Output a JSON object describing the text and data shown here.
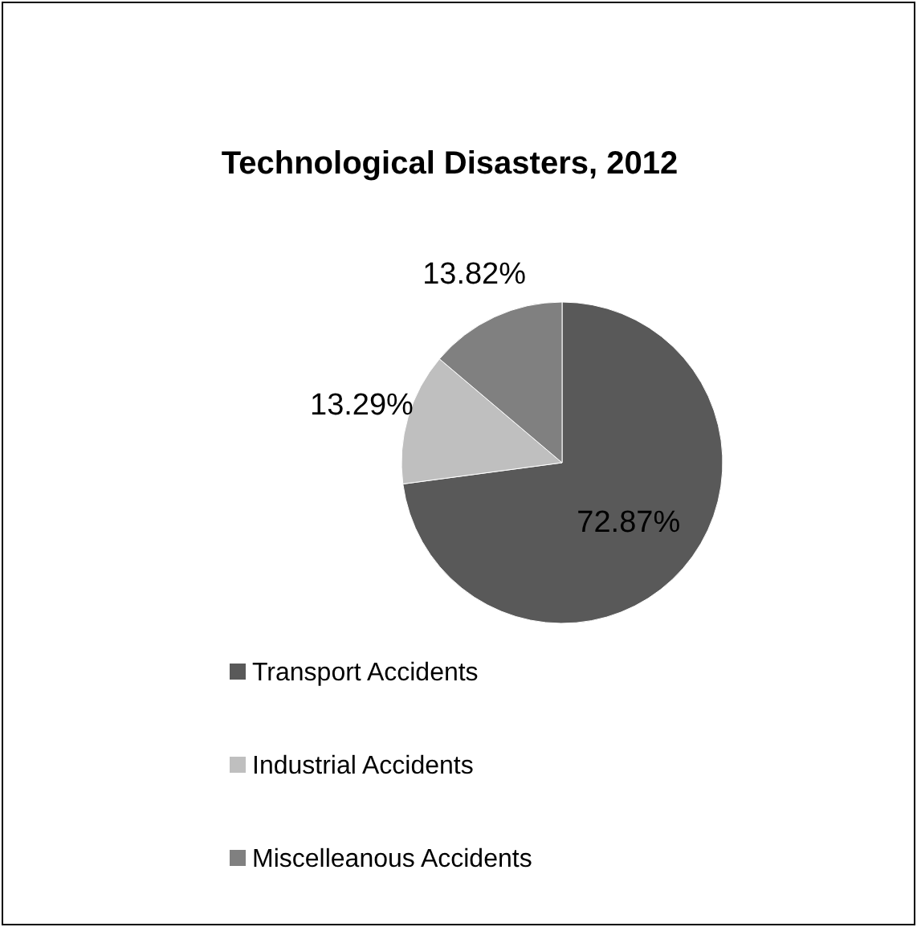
{
  "chart_data": {
    "type": "pie",
    "title": "Technological Disasters, 2012",
    "categories": [
      "Transport Accidents",
      "Industrial Accidents",
      "Miscelleanous Accidents"
    ],
    "values": [
      72.87,
      13.29,
      13.82
    ],
    "value_labels": [
      "72.87%",
      "13.29%",
      "13.82%"
    ],
    "colors": [
      "#595959",
      "#bfbfbf",
      "#808080"
    ],
    "legend": "bottom"
  }
}
